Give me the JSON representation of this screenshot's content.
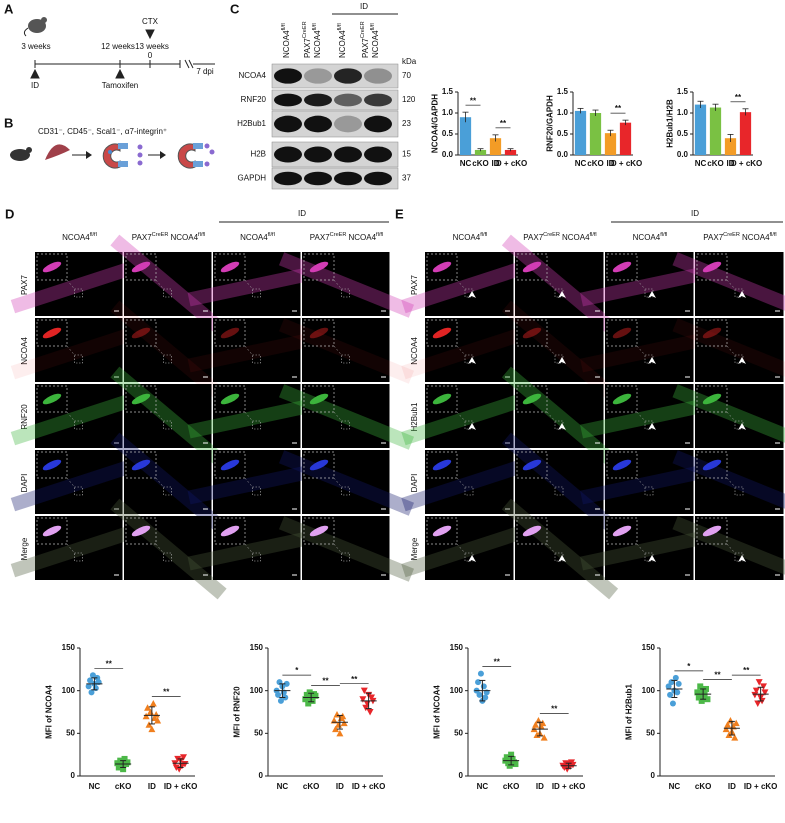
{
  "panel_a": {
    "label": "A",
    "age_start": "3 weeks",
    "age_tam": "12 weeks",
    "age_ctx": "13 weeks",
    "id": "ID",
    "tamoxifen": "Tamoxifen",
    "ctx": "CTX",
    "zero": "0",
    "dpi": "7 dpi"
  },
  "panel_b": {
    "label": "B",
    "markers": "CD31⁻, CD45⁻, Scal1⁻, α7-integrin⁺"
  },
  "panel_c": {
    "label": "C",
    "group": "ID",
    "kda": "kDa",
    "lanes": [
      [
        [
          {
            "text": "NCOA4"
          },
          {
            "text": "fl/fl",
            "superscript": true
          }
        ]
      ],
      [
        [
          {
            "text": "PAX7"
          },
          {
            "text": "CreER",
            "superscript": true
          }
        ],
        [
          {
            "text": "NCOA4"
          },
          {
            "text": "fl/fl",
            "superscript": true
          }
        ]
      ],
      [
        [
          {
            "text": "NCOA4"
          },
          {
            "text": "fl/fl",
            "superscript": true
          }
        ]
      ],
      [
        [
          {
            "text": "PAX7"
          },
          {
            "text": "CreER",
            "superscript": true
          }
        ],
        [
          {
            "text": "NCOA4"
          },
          {
            "text": "fl/fl",
            "superscript": true
          }
        ]
      ]
    ],
    "bands": [
      {
        "name": "NCOA4",
        "kda": "70"
      },
      {
        "name": "RNF20",
        "kda": "120"
      },
      {
        "name": "H2Bub1",
        "kda": "23"
      },
      {
        "name": "H2B",
        "kda": "15"
      },
      {
        "name": "GAPDH",
        "kda": "37"
      }
    ]
  },
  "panel_d": {
    "label": "D",
    "group": "ID",
    "columns": [
      [
        [
          {
            "text": "NCOA4"
          },
          {
            "text": "fl/fl",
            "superscript": true
          }
        ]
      ],
      [
        [
          {
            "text": "PAX7"
          },
          {
            "text": "CreER",
            "superscript": true
          },
          {
            "text": "NCOA4"
          },
          {
            "text": "fl/fl",
            "superscript": true
          }
        ]
      ],
      [
        [
          {
            "text": "NCOA4"
          },
          {
            "text": "fl/fl",
            "superscript": true
          }
        ]
      ],
      [
        [
          {
            "text": "PAX7"
          },
          {
            "text": "CreER",
            "superscript": true
          },
          {
            "text": "NCOA4"
          },
          {
            "text": "fl/fl",
            "superscript": true
          }
        ]
      ]
    ],
    "rows": [
      {
        "name": "PAX7",
        "color": "#d23cb4"
      },
      {
        "name": "NCOA4",
        "color": "#e02424"
      },
      {
        "name": "RNF20",
        "color": "#3cb43c"
      },
      {
        "name": "DAPI",
        "color": "#2838d8"
      },
      {
        "name": "Merge",
        "color": "#b040a8"
      }
    ]
  },
  "panel_e": {
    "label": "E",
    "group": "ID",
    "columns": [
      [
        [
          {
            "text": "NCOA4"
          },
          {
            "text": "fl/fl",
            "superscript": true
          }
        ]
      ],
      [
        [
          {
            "text": "PAX7"
          },
          {
            "text": "CreER",
            "superscript": true
          },
          {
            "text": "NCOA4"
          },
          {
            "text": "fl/fl",
            "superscript": true
          }
        ]
      ],
      [
        [
          {
            "text": "NCOA4"
          },
          {
            "text": "fl/fl",
            "superscript": true
          }
        ]
      ],
      [
        [
          {
            "text": "PAX7"
          },
          {
            "text": "CreER",
            "superscript": true
          },
          {
            "text": "NCOA4"
          },
          {
            "text": "fl/fl",
            "superscript": true
          }
        ]
      ]
    ],
    "rows": [
      {
        "name": "PAX7",
        "color": "#d23cb4"
      },
      {
        "name": "NCOA4",
        "color": "#e02424"
      },
      {
        "name": "H2Bub1",
        "color": "#3cb43c"
      },
      {
        "name": "DAPI",
        "color": "#2838d8"
      },
      {
        "name": "Merge",
        "color": "#b040a8"
      }
    ]
  },
  "chart_data": [
    {
      "type": "bar",
      "ylabel": "NCOA4/GAPDH",
      "categories": [
        "NC",
        "cKO",
        "ID",
        "ID + cKO"
      ],
      "values": [
        0.9,
        0.12,
        0.4,
        0.12
      ],
      "errors": [
        0.12,
        0.03,
        0.08,
        0.03
      ],
      "colors": [
        "#4a9fd8",
        "#7ac143",
        "#f39c26",
        "#e8262a"
      ],
      "ylim": [
        0,
        1.5
      ],
      "yticks": [
        {
          "value": 0,
          "label": "0.0"
        },
        {
          "value": 0.5,
          "label": "0.5"
        },
        {
          "value": 1,
          "label": "1.0"
        },
        {
          "value": 1.5,
          "label": "1.5"
        }
      ],
      "significance": [
        {
          "from": 0,
          "to": 1,
          "label": "**"
        },
        {
          "from": 2,
          "to": 3,
          "label": "**"
        }
      ]
    },
    {
      "type": "bar",
      "ylabel": "RNF20/GAPDH",
      "categories": [
        "NC",
        "cKO",
        "ID",
        "ID + cKO"
      ],
      "values": [
        1.05,
        1.0,
        0.52,
        0.77
      ],
      "errors": [
        0.06,
        0.07,
        0.07,
        0.06
      ],
      "colors": [
        "#4a9fd8",
        "#7ac143",
        "#f39c26",
        "#e8262a"
      ],
      "ylim": [
        0,
        1.5
      ],
      "yticks": [
        {
          "value": 0,
          "label": "0.0"
        },
        {
          "value": 0.5,
          "label": "0.5"
        },
        {
          "value": 1,
          "label": "1.0"
        },
        {
          "value": 1.5,
          "label": "1.5"
        }
      ],
      "significance": [
        {
          "from": 2,
          "to": 3,
          "label": "**"
        }
      ]
    },
    {
      "type": "bar",
      "ylabel": "H2Bub1/H2B",
      "categories": [
        "NC",
        "cKO",
        "ID",
        "ID + cKO"
      ],
      "values": [
        1.2,
        1.13,
        0.4,
        1.02
      ],
      "errors": [
        0.08,
        0.08,
        0.09,
        0.08
      ],
      "colors": [
        "#4a9fd8",
        "#7ac143",
        "#f39c26",
        "#e8262a"
      ],
      "ylim": [
        0,
        1.5
      ],
      "yticks": [
        {
          "value": 0,
          "label": "0.0"
        },
        {
          "value": 0.5,
          "label": "0.5"
        },
        {
          "value": 1,
          "label": "1.0"
        },
        {
          "value": 1.5,
          "label": "1.5"
        }
      ],
      "significance": [
        {
          "from": 2,
          "to": 3,
          "label": "**"
        }
      ]
    },
    {
      "type": "dot",
      "ylabel": "MFI of NCOA4",
      "categories": [
        "NC",
        "cKO",
        "ID",
        "ID + cKO"
      ],
      "ylim": [
        0,
        150
      ],
      "yticks": [
        0,
        50,
        100,
        150
      ],
      "groups": [
        {
          "color": "#4a9fd8",
          "marker": "circle",
          "values": [
            105,
            112,
            98,
            118,
            108,
            103,
            115,
            110
          ],
          "mean": 108,
          "sd": 7
        },
        {
          "color": "#4cb848",
          "marker": "square",
          "values": [
            15,
            10,
            18,
            12,
            8,
            20,
            14,
            16
          ],
          "mean": 14,
          "sd": 4
        },
        {
          "color": "#f07f1e",
          "marker": "triangle",
          "values": [
            70,
            80,
            60,
            75,
            55,
            85,
            68,
            72,
            65
          ],
          "mean": 71,
          "sd": 10
        },
        {
          "color": "#e8262a",
          "marker": "down",
          "values": [
            15,
            10,
            20,
            8,
            18,
            12,
            22,
            14
          ],
          "mean": 15,
          "sd": 5
        }
      ],
      "significance": [
        {
          "from": 0,
          "to": 1,
          "label": "**"
        },
        {
          "from": 2,
          "to": 3,
          "label": "**"
        }
      ]
    },
    {
      "type": "dot",
      "ylabel": "MFI of RNF20",
      "categories": [
        "NC",
        "cKO",
        "ID",
        "ID + cKO"
      ],
      "ylim": [
        0,
        150
      ],
      "yticks": [
        0,
        50,
        100,
        150
      ],
      "groups": [
        {
          "color": "#4a9fd8",
          "marker": "circle",
          "values": [
            100,
            95,
            110,
            88,
            105,
            98,
            92,
            108
          ],
          "mean": 100,
          "sd": 8
        },
        {
          "color": "#4cb848",
          "marker": "square",
          "values": [
            90,
            95,
            85,
            98,
            92,
            88,
            96,
            94
          ],
          "mean": 92,
          "sd": 5
        },
        {
          "color": "#f07f1e",
          "marker": "triangle",
          "values": [
            65,
            55,
            72,
            60,
            50,
            68,
            70,
            62
          ],
          "mean": 63,
          "sd": 8
        },
        {
          "color": "#e8262a",
          "marker": "down",
          "values": [
            90,
            100,
            80,
            85,
            95,
            75,
            92,
            88
          ],
          "mean": 88,
          "sd": 9
        }
      ],
      "significance": [
        {
          "from": 0,
          "to": 1,
          "label": "*"
        },
        {
          "from": 1,
          "to": 2,
          "label": "**"
        },
        {
          "from": 2,
          "to": 3,
          "label": "**"
        }
      ]
    },
    {
      "type": "dot",
      "ylabel": "MFI of NCOA4",
      "categories": [
        "NC",
        "cKO",
        "ID",
        "ID + cKO"
      ],
      "ylim": [
        0,
        150
      ],
      "yticks": [
        0,
        50,
        100,
        150
      ],
      "groups": [
        {
          "color": "#4a9fd8",
          "marker": "circle",
          "values": [
            100,
            110,
            95,
            120,
            88,
            105,
            92,
            98
          ],
          "mean": 100,
          "sd": 12
        },
        {
          "color": "#4cb848",
          "marker": "square",
          "values": [
            18,
            22,
            15,
            12,
            25,
            20,
            16,
            14
          ],
          "mean": 18,
          "sd": 5
        },
        {
          "color": "#f07f1e",
          "marker": "triangle",
          "values": [
            55,
            60,
            48,
            65,
            50,
            58,
            62,
            45
          ],
          "mean": 55,
          "sd": 8
        },
        {
          "color": "#e8262a",
          "marker": "down",
          "values": [
            12,
            10,
            15,
            8,
            14,
            11,
            16,
            13
          ],
          "mean": 12,
          "sd": 3
        }
      ],
      "significance": [
        {
          "from": 0,
          "to": 1,
          "label": "**"
        },
        {
          "from": 2,
          "to": 3,
          "label": "**"
        }
      ]
    },
    {
      "type": "dot",
      "ylabel": "MFI of H2Bub1",
      "categories": [
        "NC",
        "cKO",
        "ID",
        "ID + cKO"
      ],
      "ylim": [
        0,
        150
      ],
      "yticks": [
        0,
        50,
        100,
        150
      ],
      "groups": [
        {
          "color": "#4a9fd8",
          "marker": "circle",
          "values": [
            105,
            95,
            110,
            85,
            100,
            115,
            98,
            108
          ],
          "mean": 102,
          "sd": 10
        },
        {
          "color": "#4cb848",
          "marker": "square",
          "values": [
            98,
            92,
            105,
            88,
            100,
            95,
            102,
            90
          ],
          "mean": 96,
          "sd": 6
        },
        {
          "color": "#f07f1e",
          "marker": "triangle",
          "values": [
            55,
            60,
            48,
            65,
            52,
            58,
            45,
            62
          ],
          "mean": 56,
          "sd": 8
        },
        {
          "color": "#e8262a",
          "marker": "down",
          "values": [
            95,
            100,
            85,
            110,
            92,
            88,
            105,
            98
          ],
          "mean": 96,
          "sd": 8
        }
      ],
      "significance": [
        {
          "from": 0,
          "to": 1,
          "label": "*"
        },
        {
          "from": 1,
          "to": 2,
          "label": "**"
        },
        {
          "from": 2,
          "to": 3,
          "label": "**"
        }
      ]
    }
  ]
}
